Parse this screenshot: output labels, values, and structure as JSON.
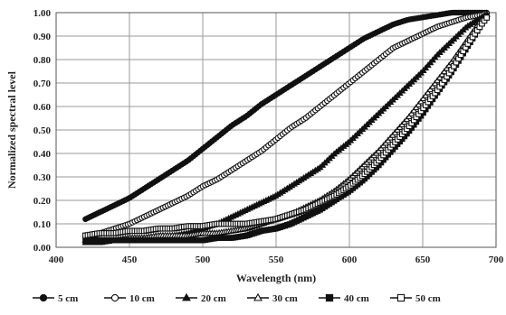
{
  "chart_data": {
    "type": "scatter",
    "title": "",
    "xlabel": "Wavelength (nm)",
    "ylabel": "Normalized spectral level",
    "xlim": [
      400,
      700
    ],
    "ylim": [
      0,
      1
    ],
    "x_ticks": [
      400,
      450,
      500,
      550,
      600,
      650,
      700
    ],
    "y_ticks": [
      "0.00",
      "0.10",
      "0.20",
      "0.30",
      "0.40",
      "0.50",
      "0.60",
      "0.70",
      "0.80",
      "0.90",
      "1.00"
    ],
    "grid": true,
    "legend_position": "bottom",
    "x": [
      420,
      430,
      440,
      450,
      460,
      470,
      480,
      490,
      500,
      510,
      520,
      530,
      540,
      550,
      560,
      570,
      580,
      590,
      600,
      610,
      620,
      630,
      640,
      650,
      660,
      670,
      680,
      690,
      695
    ],
    "series": [
      {
        "name": "5 cm",
        "marker": "circle-filled",
        "values": [
          0.12,
          0.15,
          0.18,
          0.21,
          0.25,
          0.29,
          0.33,
          0.37,
          0.42,
          0.47,
          0.52,
          0.56,
          0.61,
          0.65,
          0.69,
          0.73,
          0.77,
          0.81,
          0.85,
          0.89,
          0.92,
          0.95,
          0.97,
          0.98,
          0.99,
          1.0,
          1.0,
          1.0,
          1.0
        ]
      },
      {
        "name": "10 cm",
        "marker": "circle-open",
        "values": [
          0.04,
          0.06,
          0.08,
          0.1,
          0.13,
          0.16,
          0.19,
          0.22,
          0.26,
          0.29,
          0.33,
          0.37,
          0.41,
          0.46,
          0.51,
          0.55,
          0.6,
          0.65,
          0.7,
          0.75,
          0.8,
          0.85,
          0.88,
          0.91,
          0.94,
          0.96,
          0.98,
          0.99,
          1.0
        ]
      },
      {
        "name": "20 cm",
        "marker": "triangle-filled",
        "values": [
          0.02,
          0.02,
          0.03,
          0.03,
          0.04,
          0.04,
          0.05,
          0.06,
          0.08,
          0.1,
          0.13,
          0.16,
          0.19,
          0.22,
          0.26,
          0.3,
          0.34,
          0.4,
          0.45,
          0.51,
          0.57,
          0.63,
          0.69,
          0.75,
          0.82,
          0.88,
          0.94,
          0.98,
          1.0
        ]
      },
      {
        "name": "30 cm",
        "marker": "triangle-open",
        "values": [
          0.03,
          0.03,
          0.03,
          0.04,
          0.04,
          0.05,
          0.05,
          0.05,
          0.06,
          0.06,
          0.07,
          0.08,
          0.1,
          0.12,
          0.14,
          0.17,
          0.2,
          0.24,
          0.29,
          0.35,
          0.41,
          0.48,
          0.55,
          0.63,
          0.71,
          0.79,
          0.88,
          0.97,
          1.0
        ]
      },
      {
        "name": "40 cm",
        "marker": "square-filled",
        "values": [
          0.03,
          0.03,
          0.03,
          0.03,
          0.03,
          0.03,
          0.03,
          0.03,
          0.03,
          0.04,
          0.04,
          0.05,
          0.07,
          0.08,
          0.1,
          0.13,
          0.16,
          0.2,
          0.24,
          0.29,
          0.35,
          0.42,
          0.49,
          0.57,
          0.66,
          0.75,
          0.85,
          0.95,
          1.0
        ]
      },
      {
        "name": "50 cm",
        "marker": "square-open",
        "values": [
          0.05,
          0.06,
          0.06,
          0.07,
          0.07,
          0.08,
          0.08,
          0.09,
          0.09,
          0.1,
          0.1,
          0.1,
          0.11,
          0.12,
          0.14,
          0.16,
          0.19,
          0.22,
          0.26,
          0.31,
          0.37,
          0.44,
          0.51,
          0.59,
          0.67,
          0.76,
          0.86,
          0.95,
          0.99
        ]
      }
    ]
  }
}
